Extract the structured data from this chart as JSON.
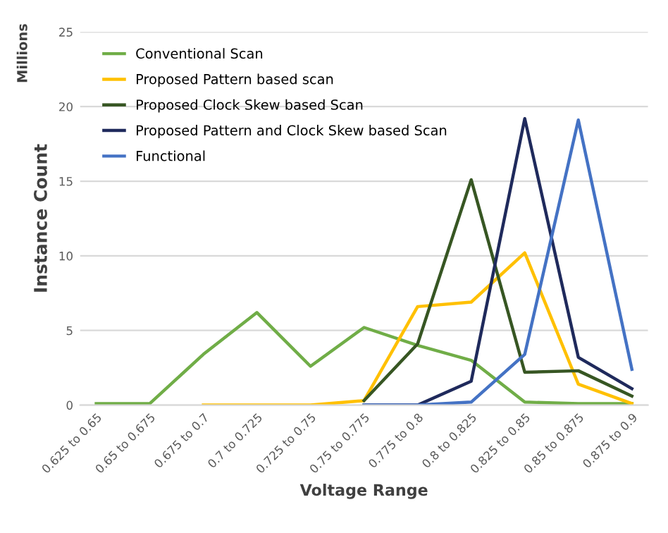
{
  "chart_data": {
    "type": "line",
    "xlabel": "Voltage Range",
    "ylabel": "Instance Count",
    "annotations": [
      "Millions"
    ],
    "categories": [
      "0.625 to 0.65",
      "0.65 to 0.675",
      "0.675 to 0.7",
      "0.7 to 0.725",
      "0.725 to 0.75",
      "0.75 to 0.775",
      "0.775 to 0.8",
      "0.8 to 0.825",
      "0.825 to 0.85",
      "0.85 to 0.875",
      "0.875 to 0.9"
    ],
    "series": [
      {
        "name": "Conventional Scan",
        "color": "#70ad47",
        "values": [
          0.1,
          0.1,
          3.4,
          6.2,
          2.6,
          5.2,
          4.0,
          3.0,
          0.2,
          0.1,
          0.1
        ]
      },
      {
        "name": "Proposed Pattern based scan",
        "color": "#ffc000",
        "values": [
          null,
          null,
          0,
          0,
          0,
          0.3,
          6.6,
          6.9,
          10.2,
          1.4,
          0.1
        ]
      },
      {
        "name": "Proposed Clock Skew based Scan",
        "color": "#375623",
        "values": [
          null,
          null,
          null,
          null,
          null,
          0.3,
          4.1,
          15.1,
          2.2,
          2.3,
          0.6
        ]
      },
      {
        "name": "Proposed Pattern and Clock Skew based Scan",
        "color": "#1f2a5c",
        "values": [
          null,
          null,
          null,
          null,
          null,
          0,
          0,
          1.6,
          19.2,
          3.2,
          1.1
        ]
      },
      {
        "name": "Functional",
        "color": "#4472c4",
        "values": [
          null,
          null,
          null,
          null,
          null,
          0,
          0,
          0.2,
          3.4,
          19.1,
          2.4
        ]
      }
    ],
    "ylim": [
      0,
      25
    ],
    "yticks": [
      0,
      5,
      10,
      15,
      20,
      25
    ],
    "grid": "y",
    "legend": "top left"
  }
}
